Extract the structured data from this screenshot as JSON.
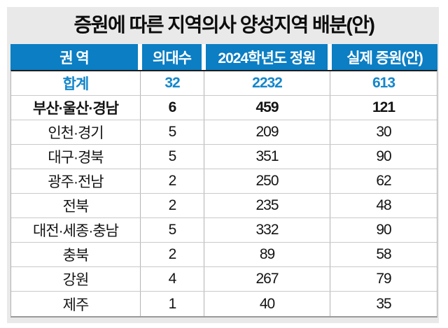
{
  "title": "증원에 따른 지역의사 양성지역 배분(안)",
  "colors": {
    "header_bg": "#0b7ec4",
    "total_row_text": "#1486cb",
    "panel_bg": "#e9e9e9",
    "body_text": "#141414"
  },
  "chart_data": {
    "type": "table",
    "title": "증원에 따른 지역의사 양성지역 배분(안)",
    "columns": [
      "권 역",
      "의대수",
      "2024학년도 정원",
      "실제 증원(안)"
    ],
    "rows": [
      [
        "합계",
        32,
        2232,
        613
      ],
      [
        "부산·울산·경남",
        6,
        459,
        121
      ],
      [
        "인천·경기",
        5,
        209,
        30
      ],
      [
        "대구·경북",
        5,
        351,
        90
      ],
      [
        "광주·전남",
        2,
        250,
        62
      ],
      [
        "전북",
        2,
        235,
        48
      ],
      [
        "대전·세종·충남",
        5,
        332,
        90
      ],
      [
        "충북",
        2,
        89,
        58
      ],
      [
        "강원",
        4,
        267,
        79
      ],
      [
        "제주",
        1,
        40,
        35
      ]
    ],
    "row_styles": [
      "total",
      "emph",
      "",
      "",
      "",
      "",
      "",
      "",
      "",
      ""
    ],
    "layout": {
      "header_text_color": "#ffffff",
      "total_row_color": "#1486cb",
      "grid": "horizontal and vertical light-gray rules, dark rule under header"
    }
  }
}
